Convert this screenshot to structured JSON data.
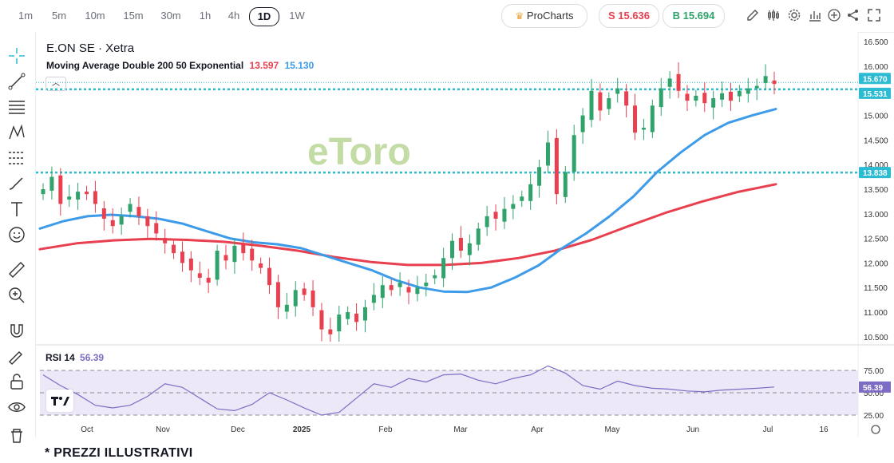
{
  "timeframes": [
    "1m",
    "5m",
    "10m",
    "15m",
    "30m",
    "1h",
    "4h",
    "1D",
    "1W"
  ],
  "active_timeframe": "1D",
  "procharts_label": "ProCharts",
  "sell_label": "S 15.636",
  "buy_label": "B 15.694",
  "symbol_title": "E.ON SE · Xetra",
  "indicator": {
    "name": "Moving Average Double 200 50 Exponential",
    "value_slow": "13.597",
    "value_fast": "15.130",
    "color_slow": "#e8404f",
    "color_fast": "#3d9be9"
  },
  "rsi": {
    "name": "RSI 14",
    "value": "56.39",
    "ticks": [
      "75.00",
      "50.00",
      "25.00"
    ],
    "value_tag": "56.39"
  },
  "watermark": "eToro",
  "footnote": "* PREZZI ILLUSTRATIVI",
  "colors": {
    "up": "#2fa36b",
    "down": "#e8404f",
    "ma_fast": "#3d9be9",
    "ma_slow": "#e8404f",
    "level": "#2bbcd4",
    "rsi_line": "#7e6bc4",
    "rsi_band": "#ede8f7"
  },
  "chart_data": {
    "type": "line",
    "title": "E.ON SE · Xetra",
    "ylim": [
      10.4,
      16.6
    ],
    "y_ticks": [
      "16.500",
      "16.000",
      "15.500",
      "15.000",
      "14.500",
      "14.000",
      "13.500",
      "13.000",
      "12.500",
      "12.000",
      "11.500",
      "11.000",
      "10.500"
    ],
    "x_tick_labels": [
      "Oct",
      "Nov",
      "Dec",
      "2025",
      "Feb",
      "Mar",
      "Apr",
      "May",
      "Jun",
      "Jul",
      "16"
    ],
    "price_tags": [
      {
        "label": "15.670",
        "value": 15.67,
        "style": "solid"
      },
      {
        "label": "15.531",
        "value": 15.531,
        "style": "solid"
      },
      {
        "label": "13.838",
        "value": 13.838,
        "style": "solid"
      }
    ],
    "levels": [
      15.531,
      13.838
    ],
    "last_line": 15.67,
    "series": [
      {
        "name": "Close",
        "values": [
          13.5,
          13.75,
          13.2,
          13.35,
          13.45,
          13.4,
          13.2,
          12.9,
          12.75,
          12.95,
          13.2,
          12.95,
          12.75,
          12.6,
          12.4,
          12.2,
          12.0,
          11.85,
          11.7,
          11.6,
          12.25,
          12.05,
          12.35,
          12.2,
          12.05,
          11.9,
          11.55,
          11.1,
          11.15,
          11.45,
          11.35,
          11.1,
          10.65,
          10.55,
          10.95,
          11.0,
          10.8,
          11.1,
          11.35,
          11.55,
          11.45,
          11.6,
          11.4,
          11.5,
          11.6,
          11.75,
          12.1,
          12.45,
          12.25,
          12.4,
          12.7,
          12.95,
          12.9,
          13.1,
          13.2,
          13.35,
          13.6,
          13.95,
          14.45,
          13.4,
          13.85,
          14.6,
          15.0,
          15.5,
          15.1,
          15.35,
          15.55,
          15.2,
          14.65,
          14.75,
          15.2,
          15.55,
          15.75,
          15.5,
          15.3,
          15.4,
          15.25,
          15.35,
          15.45,
          15.3,
          15.5,
          15.55,
          15.6,
          15.8,
          15.64
        ]
      },
      {
        "name": "EMA 50",
        "values": [
          12.7,
          12.85,
          12.95,
          12.98,
          12.95,
          12.9,
          12.8,
          12.65,
          12.5,
          12.42,
          12.38,
          12.3,
          12.15,
          12.0,
          11.85,
          11.65,
          11.5,
          11.42,
          11.41,
          11.5,
          11.7,
          11.95,
          12.3,
          12.6,
          12.95,
          13.35,
          13.85,
          14.25,
          14.6,
          14.85,
          15.0,
          15.13
        ]
      },
      {
        "name": "EMA 200",
        "values": [
          12.28,
          12.4,
          12.46,
          12.49,
          12.47,
          12.43,
          12.35,
          12.25,
          12.12,
          12.02,
          11.96,
          11.96,
          12.0,
          12.1,
          12.25,
          12.47,
          12.75,
          13.02,
          13.25,
          13.45,
          13.6
        ]
      },
      {
        "name": "RSI 14",
        "values": [
          70,
          58,
          48,
          36,
          33,
          36,
          46,
          60,
          56,
          44,
          32,
          30,
          37,
          50,
          42,
          33,
          25,
          28,
          44,
          60,
          56,
          66,
          62,
          70,
          71,
          64,
          60,
          66,
          70,
          80,
          72,
          58,
          54,
          63,
          58,
          55,
          54,
          52,
          51,
          53,
          54,
          55,
          56.39
        ]
      }
    ]
  }
}
